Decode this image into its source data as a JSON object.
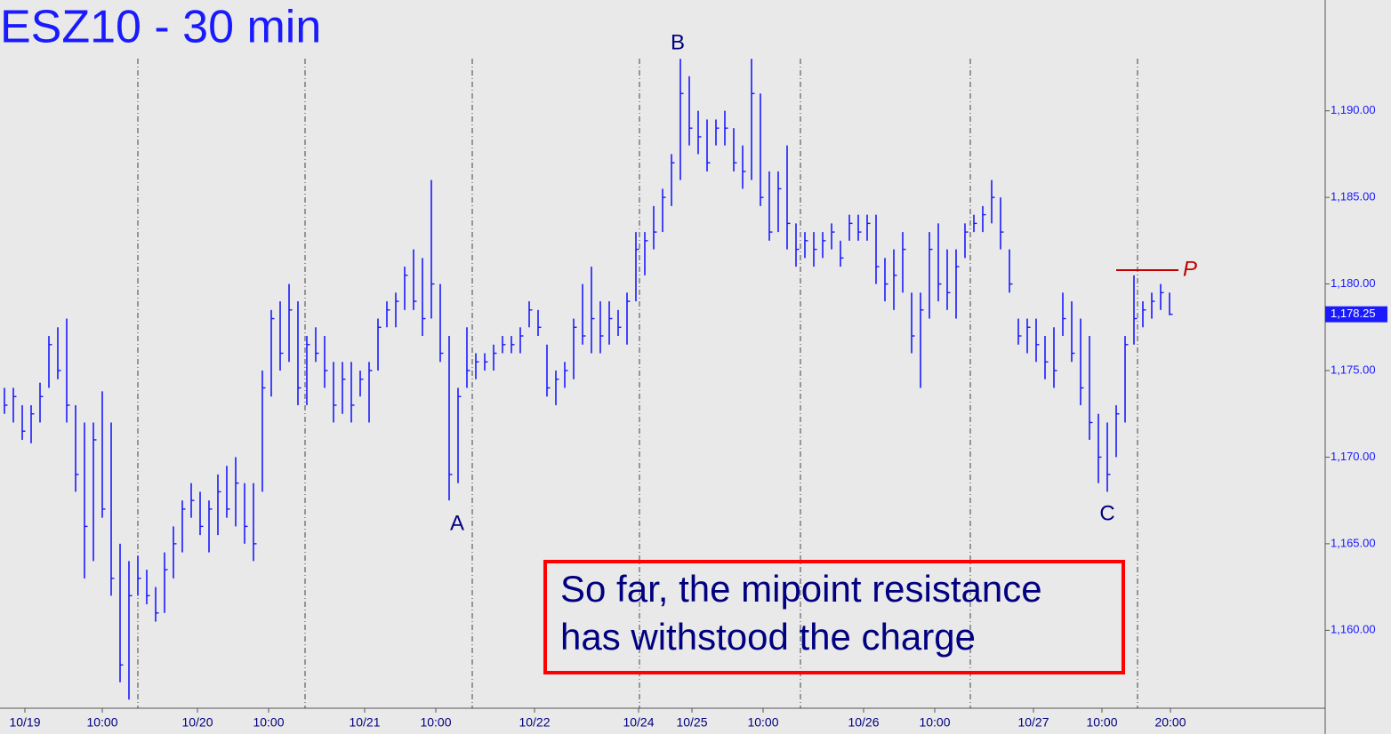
{
  "chart_data": {
    "type": "ohlc",
    "title": "ESZ10 - 30 min",
    "color": "#1a1aff",
    "high": [
      1174,
      1174,
      1173,
      1173,
      1174.3,
      1177,
      1177.5,
      1178,
      1173,
      1172,
      1172,
      1173.8,
      1172,
      1165,
      1164,
      1164.3,
      1163.5,
      1162.5,
      1164.5,
      1166,
      1167.5,
      1168.5,
      1168,
      1167.5,
      1169,
      1169.5,
      1170,
      1168.5,
      1168.5,
      1175,
      1178.5,
      1179,
      1180,
      1179,
      1177,
      1177.5,
      1177,
      1175.5,
      1175.5,
      1175.5,
      1175,
      1175.5,
      1178,
      1179,
      1179.5,
      1181,
      1182,
      1181.5,
      1186,
      1180,
      1177,
      1174,
      1177.5,
      1176,
      1176,
      1176.5,
      1177,
      1177,
      1177.5,
      1179,
      1178.5,
      1176.5,
      1175,
      1175.5,
      1178,
      1180,
      1181,
      1179,
      1179,
      1178.5,
      1179.5,
      1183,
      1183,
      1184.5,
      1185.5,
      1187.5,
      1193,
      1192,
      1190,
      1189.5,
      1189.5,
      1190,
      1189,
      1188,
      1193,
      1191,
      1186.5,
      1186.5,
      1188,
      1183.5,
      1183,
      1183,
      1183,
      1183.5,
      1182.5,
      1184,
      1184,
      1184,
      1184,
      1181.5,
      1182,
      1183,
      1179.5,
      1179.5,
      1183,
      1183.5,
      1182,
      1182,
      1183.5,
      1184,
      1184.5,
      1186,
      1185,
      1182,
      1178,
      1178,
      1178,
      1177,
      1177.5,
      1179.5,
      1179,
      1178,
      1177,
      1172.5,
      1172,
      1173,
      1177,
      1180.5,
      1179,
      1179.5,
      1180,
      1179.5
    ],
    "low": [
      1172.5,
      1172,
      1171,
      1170.8,
      1172,
      1174,
      1174.5,
      1172,
      1168,
      1163,
      1164,
      1166.5,
      1162,
      1157,
      1156,
      1162,
      1161.5,
      1160.5,
      1161,
      1163,
      1164.5,
      1166.5,
      1165.5,
      1164.5,
      1165.5,
      1166.5,
      1166,
      1165,
      1164,
      1168,
      1173.5,
      1175,
      1175.5,
      1173,
      1173,
      1175.5,
      1174,
      1172,
      1172.5,
      1172,
      1173.5,
      1172,
      1175,
      1177.5,
      1177.5,
      1178.5,
      1178.5,
      1177,
      1178,
      1175.5,
      1167.5,
      1168.5,
      1174,
      1174.5,
      1175,
      1175,
      1176,
      1176,
      1176,
      1177.5,
      1177,
      1173.5,
      1173,
      1174,
      1174.5,
      1176.5,
      1176,
      1176,
      1176.5,
      1177,
      1176.5,
      1179,
      1180.5,
      1182,
      1183,
      1184.5,
      1186,
      1188,
      1187.5,
      1186.5,
      1188,
      1188,
      1186.5,
      1185.5,
      1186,
      1184.5,
      1182.5,
      1183,
      1182,
      1181,
      1181.5,
      1181,
      1181.5,
      1182,
      1181,
      1182.5,
      1182.5,
      1182.5,
      1180,
      1179,
      1178.5,
      1179.5,
      1176,
      1174,
      1178,
      1179,
      1178.5,
      1178,
      1181.5,
      1183,
      1183,
      1183.5,
      1182,
      1179.5,
      1176.5,
      1176,
      1175.5,
      1174.5,
      1174,
      1177,
      1175.5,
      1173,
      1171,
      1168.5,
      1168,
      1170,
      1172,
      1176.5,
      1177.5,
      1178,
      1178.5,
      1178.2
    ],
    "close": [
      1173,
      1173.5,
      1171.5,
      1172.5,
      1173.5,
      1176.5,
      1175,
      1173,
      1169,
      1166,
      1171,
      1167,
      1163,
      1158,
      1162,
      1163,
      1162,
      1161,
      1163.5,
      1165,
      1167,
      1167.5,
      1166,
      1167,
      1168,
      1167,
      1168.5,
      1166,
      1165,
      1174,
      1178,
      1176,
      1178.5,
      1174,
      1176.5,
      1176,
      1175,
      1173,
      1174.5,
      1173,
      1174.5,
      1175,
      1177.5,
      1178.5,
      1179,
      1180.5,
      1179,
      1178,
      1180,
      1176,
      1169,
      1173.5,
      1175,
      1175.5,
      1175.5,
      1176,
      1176.5,
      1176.5,
      1177,
      1178.5,
      1177.5,
      1174,
      1174.5,
      1175,
      1177.5,
      1177,
      1178,
      1177,
      1178,
      1177.5,
      1179,
      1182,
      1182.5,
      1183,
      1185,
      1187,
      1191,
      1189,
      1188.5,
      1187,
      1189,
      1189,
      1187,
      1186.5,
      1191,
      1185,
      1183,
      1185.5,
      1183.5,
      1182,
      1182.5,
      1182,
      1182.5,
      1183,
      1181.5,
      1183.5,
      1183,
      1183.5,
      1181,
      1180,
      1180.5,
      1182,
      1177,
      1178.5,
      1182,
      1180,
      1179.5,
      1181,
      1183,
      1183.5,
      1184,
      1185,
      1183,
      1180,
      1177,
      1177.5,
      1176.5,
      1175.5,
      1175,
      1178,
      1176,
      1174,
      1172,
      1170,
      1169,
      1172.5,
      1176.5,
      1178,
      1178.5,
      1179,
      1179.5,
      1178.25
    ],
    "xlim": [
      0,
      149
    ],
    "xticks": [
      {
        "value": 2.8,
        "label": "10/19"
      },
      {
        "value": 11.5,
        "label": "10:00"
      },
      {
        "value": 22.2,
        "label": "10/20"
      },
      {
        "value": 30.2,
        "label": "10:00"
      },
      {
        "value": 41.0,
        "label": "10/21"
      },
      {
        "value": 49.0,
        "label": "10:00"
      },
      {
        "value": 60.1,
        "label": "10/22"
      },
      {
        "value": 71.8,
        "label": "10/24"
      },
      {
        "value": 77.8,
        "label": "10/25"
      },
      {
        "value": 85.8,
        "label": "10:00"
      },
      {
        "value": 97.1,
        "label": "10/26"
      },
      {
        "value": 105.1,
        "label": "10:00"
      },
      {
        "value": 116.2,
        "label": "10/27"
      },
      {
        "value": 123.9,
        "label": "10:00"
      },
      {
        "value": 131.6,
        "label": "20:00"
      }
    ],
    "session_breaks": [
      15.5,
      34.3,
      53.1,
      71.9,
      90.0,
      109.1,
      127.9
    ],
    "ylim": [
      1155.5,
      1196.4
    ],
    "yticks": [
      {
        "value": 1160,
        "label": "1,160.00"
      },
      {
        "value": 1165,
        "label": "1,165.00"
      },
      {
        "value": 1170,
        "label": "1,170.00"
      },
      {
        "value": 1175,
        "label": "1,175.00"
      },
      {
        "value": 1180,
        "label": "1,180.00"
      },
      {
        "value": 1185,
        "label": "1,185.00"
      },
      {
        "value": 1190,
        "label": "1,190.00"
      }
    ],
    "last_price": {
      "value": 1178.25,
      "label": "1,178.25"
    },
    "resistance": {
      "label": "P",
      "value": 1180.8,
      "color": "#c00000"
    },
    "annotations": [
      "A",
      "B",
      "C"
    ],
    "note": [
      "So far, the mipoint resistance",
      "has withstood the charge"
    ]
  }
}
